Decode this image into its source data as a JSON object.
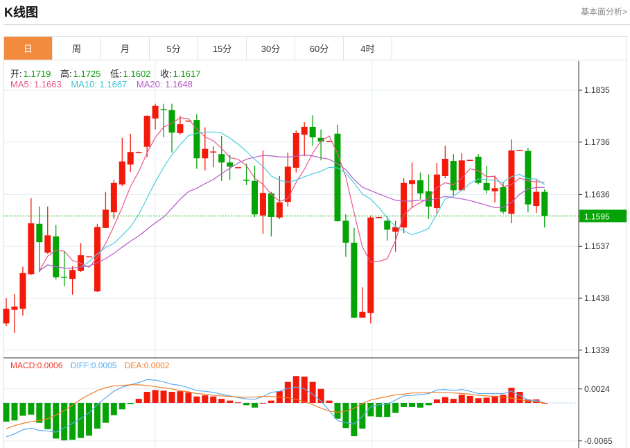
{
  "header": {
    "title": "K线图",
    "more_link": "基本面分析>"
  },
  "tabs": [
    {
      "label": "日",
      "active": true
    },
    {
      "label": "周"
    },
    {
      "label": "月"
    },
    {
      "label": "5分"
    },
    {
      "label": "15分"
    },
    {
      "label": "30分"
    },
    {
      "label": "60分"
    },
    {
      "label": "4时"
    }
  ],
  "ohlc_readout": {
    "open_label": "开:",
    "open": "1.1719",
    "high_label": "高:",
    "high": "1.1725",
    "low_label": "低:",
    "low": "1.1602",
    "close_label": "收:",
    "close": "1.1617"
  },
  "ma_readout": {
    "ma5": "MA5: 1.1663",
    "ma10": "MA10: 1.1667",
    "ma20": "MA20: 1.1648"
  },
  "macd_readout": {
    "macd": "MACD:0.0006",
    "diff": "DIFF:0.0005",
    "dea": "DEA:0.0002"
  },
  "colors": {
    "up": "#f31a0a",
    "down": "#06a306",
    "ma5": "#e8578a",
    "ma10": "#4ccde0",
    "ma20": "#b45cc8",
    "diff": "#5aacef",
    "dea": "#f07f2a",
    "active_tab": "#f38b3f",
    "last_price_bg": "#06a306"
  },
  "chart_data": [
    {
      "type": "candlestick",
      "y_ticks": [
        "1.1835",
        "1.1736",
        "1.1636",
        "1.1537",
        "1.1438",
        "1.1339"
      ],
      "ylim": [
        1.1339,
        1.1835
      ],
      "last_price": "1.1595",
      "grid": true,
      "ohlc": [
        [
          1.139,
          1.1438,
          1.1385,
          1.1418
        ],
        [
          1.1416,
          1.1446,
          1.1372,
          1.1422
        ],
        [
          1.1418,
          1.1498,
          1.1405,
          1.1486
        ],
        [
          1.1484,
          1.1629,
          1.1482,
          1.1581
        ],
        [
          1.158,
          1.1613,
          1.1488,
          1.1545
        ],
        [
          1.1525,
          1.1613,
          1.1523,
          1.1558
        ],
        [
          1.1556,
          1.1578,
          1.1474,
          1.1478
        ],
        [
          1.1479,
          1.1528,
          1.1461,
          1.1477
        ],
        [
          1.1475,
          1.1499,
          1.1445,
          1.1492
        ],
        [
          1.149,
          1.1543,
          1.1488,
          1.152
        ],
        [
          1.1517,
          1.1518,
          1.1516,
          1.1518
        ],
        [
          1.1451,
          1.158,
          1.145,
          1.1574
        ],
        [
          1.1572,
          1.1641,
          1.1572,
          1.1607
        ],
        [
          1.1602,
          1.1664,
          1.1589,
          1.1658
        ],
        [
          1.1655,
          1.1744,
          1.1652,
          1.1699
        ],
        [
          1.1693,
          1.1752,
          1.1679,
          1.1717
        ],
        [
          1.1716,
          1.1718,
          1.1715,
          1.1717
        ],
        [
          1.1727,
          1.1787,
          1.1707,
          1.1786
        ],
        [
          1.1781,
          1.1809,
          1.176,
          1.1805
        ],
        [
          1.1799,
          1.1809,
          1.1745,
          1.1797
        ],
        [
          1.1797,
          1.1809,
          1.1716,
          1.1754
        ],
        [
          1.1753,
          1.1786,
          1.175,
          1.177
        ],
        [
          1.1776,
          1.1777,
          1.1775,
          1.1777
        ],
        [
          1.1778,
          1.1789,
          1.1685,
          1.1705
        ],
        [
          1.1705,
          1.1764,
          1.1682,
          1.1723
        ],
        [
          1.1717,
          1.1728,
          1.1688,
          1.1718
        ],
        [
          1.1713,
          1.1748,
          1.1662,
          1.1697
        ],
        [
          1.1697,
          1.1712,
          1.1664,
          1.1689
        ],
        [
          1.1687,
          1.1688,
          1.1686,
          1.1688
        ],
        [
          1.1664,
          1.1695,
          1.1654,
          1.1663
        ],
        [
          1.1662,
          1.1691,
          1.1593,
          1.1598
        ],
        [
          1.1596,
          1.172,
          1.1561,
          1.1639
        ],
        [
          1.1638,
          1.1641,
          1.1556,
          1.1593
        ],
        [
          1.1592,
          1.1671,
          1.1589,
          1.1621
        ],
        [
          1.1622,
          1.1716,
          1.1613,
          1.1689
        ],
        [
          1.1687,
          1.1758,
          1.1678,
          1.1753
        ],
        [
          1.175,
          1.1774,
          1.1709,
          1.1765
        ],
        [
          1.1765,
          1.1787,
          1.1729,
          1.1745
        ],
        [
          1.1744,
          1.176,
          1.1701,
          1.1737
        ],
        [
          1.1737,
          1.1738,
          1.1736,
          1.1738
        ],
        [
          1.1752,
          1.1769,
          1.1584,
          1.1585
        ],
        [
          1.1586,
          1.1598,
          1.1517,
          1.1544
        ],
        [
          1.1544,
          1.1572,
          1.14,
          1.1401
        ],
        [
          1.1401,
          1.1459,
          1.1401,
          1.1412
        ],
        [
          1.141,
          1.1596,
          1.139,
          1.1592
        ],
        [
          1.1592,
          1.1593,
          1.1591,
          1.1593
        ],
        [
          1.1586,
          1.1594,
          1.1548,
          1.1569
        ],
        [
          1.1565,
          1.1586,
          1.1527,
          1.1574
        ],
        [
          1.1573,
          1.1667,
          1.1562,
          1.1658
        ],
        [
          1.1656,
          1.1697,
          1.161,
          1.1663
        ],
        [
          1.1663,
          1.1678,
          1.1627,
          1.1638
        ],
        [
          1.1642,
          1.1674,
          1.1589,
          1.1613
        ],
        [
          1.161,
          1.1696,
          1.1598,
          1.1674
        ],
        [
          1.1671,
          1.1729,
          1.1667,
          1.1704
        ],
        [
          1.17,
          1.1713,
          1.1634,
          1.1644
        ],
        [
          1.1644,
          1.1715,
          1.1644,
          1.1701
        ],
        [
          1.1701,
          1.1702,
          1.17,
          1.1702
        ],
        [
          1.1708,
          1.1713,
          1.1655,
          1.1658
        ],
        [
          1.1658,
          1.1691,
          1.1638,
          1.1644
        ],
        [
          1.1642,
          1.1672,
          1.1621,
          1.1648
        ],
        [
          1.165,
          1.1659,
          1.1599,
          1.1603
        ],
        [
          1.1599,
          1.1741,
          1.1581,
          1.172
        ],
        [
          1.172,
          1.1721,
          1.1719,
          1.1721
        ],
        [
          1.1719,
          1.1725,
          1.1602,
          1.1617
        ],
        [
          1.1614,
          1.1664,
          1.1601,
          1.1641
        ],
        [
          1.1641,
          1.1646,
          1.1573,
          1.1595
        ]
      ],
      "series": [
        {
          "name": "MA5"
        },
        {
          "name": "MA10"
        },
        {
          "name": "MA20"
        }
      ]
    },
    {
      "type": "bar+line",
      "y_ticks": [
        "0.0024",
        "-0.0065"
      ],
      "macd": [
        -0.0032,
        -0.003,
        -0.0022,
        -0.002,
        -0.0034,
        -0.0045,
        -0.0061,
        -0.0064,
        -0.0063,
        -0.006,
        -0.0056,
        -0.0044,
        -0.0034,
        -0.0021,
        -0.0011,
        -0.0002,
        0.0007,
        0.0019,
        0.0022,
        0.0021,
        0.0019,
        0.002,
        0.0018,
        0.0011,
        0.0013,
        0.0011,
        0.0007,
        0.0004,
        0.0001,
        -0.0004,
        -0.0008,
        0.0,
        0.0004,
        0.002,
        0.0036,
        0.0046,
        0.0045,
        0.0036,
        0.0024,
        0.0004,
        -0.0027,
        -0.0043,
        -0.0057,
        -0.0044,
        -0.0023,
        -0.0024,
        -0.0024,
        -0.0017,
        -0.0007,
        -0.0007,
        -0.0008,
        -0.0004,
        0.0006,
        0.001,
        0.0007,
        0.0014,
        0.0012,
        0.0008,
        0.0009,
        0.0012,
        0.0014,
        0.0026,
        0.0019,
        0.0006,
        0.0006,
        0.0
      ],
      "diff": [
        -0.0058,
        -0.0053,
        -0.0046,
        -0.0043,
        -0.0047,
        -0.0048,
        -0.005,
        -0.0043,
        -0.0035,
        -0.0027,
        -0.0017,
        -0.0003,
        0.0009,
        0.002,
        0.0027,
        0.0031,
        0.0035,
        0.004,
        0.0039,
        0.0036,
        0.0032,
        0.003,
        0.0026,
        0.0021,
        0.002,
        0.0018,
        0.0015,
        0.0012,
        0.0009,
        0.0007,
        0.0006,
        0.0011,
        0.0018,
        0.002,
        0.0025,
        0.0027,
        0.0024,
        0.0015,
        0.0003,
        -0.0013,
        -0.003,
        -0.0034,
        -0.0036,
        -0.0023,
        -0.0007,
        -0.0003,
        -0.0002,
        0.0005,
        0.0012,
        0.0013,
        0.0014,
        0.0016,
        0.0022,
        0.0023,
        0.0021,
        0.0023,
        0.002,
        0.0016,
        0.0016,
        0.0016,
        0.0016,
        0.002,
        0.0013,
        0.0005,
        0.0004,
        0.0
      ],
      "dea": [
        -0.0044,
        -0.0039,
        -0.0035,
        -0.0032,
        -0.003,
        -0.0027,
        -0.0021,
        -0.0013,
        -0.0004,
        0.0006,
        0.0014,
        0.0021,
        0.0026,
        0.0029,
        0.003,
        0.0031,
        0.0031,
        0.003,
        0.0028,
        0.0026,
        0.0024,
        0.0021,
        0.0019,
        0.0016,
        0.0015,
        0.0013,
        0.0012,
        0.0011,
        0.001,
        0.001,
        0.001,
        0.0011,
        0.0011,
        0.001,
        0.0009,
        0.0006,
        0.0002,
        -0.0003,
        -0.0009,
        -0.0014,
        -0.0016,
        -0.0014,
        -0.0009,
        -0.0001,
        0.0005,
        0.0008,
        0.0011,
        0.0014,
        0.0015,
        0.0017,
        0.0017,
        0.0018,
        0.0018,
        0.0018,
        0.0017,
        0.0016,
        0.0015,
        0.0013,
        0.0012,
        0.0011,
        0.001,
        0.0008,
        0.0006,
        0.0003,
        0.0002,
        0.0
      ]
    }
  ]
}
